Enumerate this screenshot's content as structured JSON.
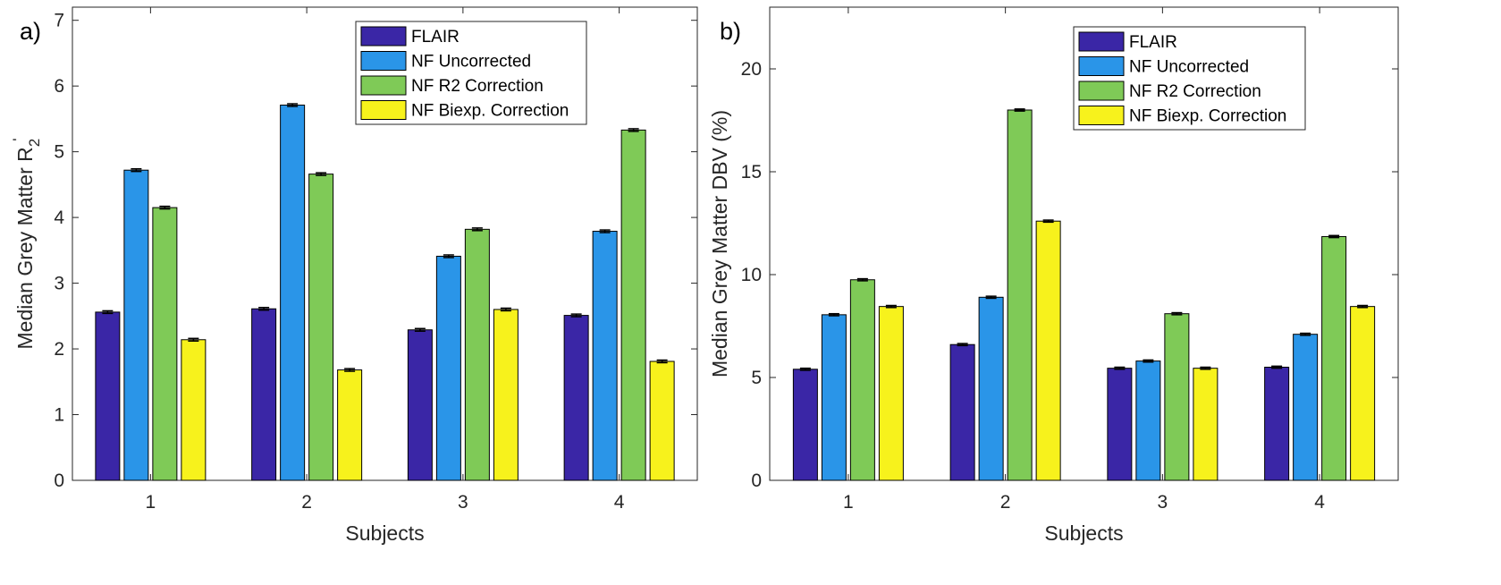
{
  "series_colors": [
    "#3a26a6",
    "#2a95e8",
    "#7fca57",
    "#f7f21c"
  ],
  "chart_data": [
    {
      "type": "bar",
      "panel_label": "a)",
      "categories": [
        "1",
        "2",
        "3",
        "4"
      ],
      "series": [
        {
          "name": "FLAIR",
          "values": [
            2.56,
            2.61,
            2.29,
            2.51
          ]
        },
        {
          "name": "NF Uncorrected",
          "values": [
            4.72,
            5.71,
            3.41,
            3.79
          ]
        },
        {
          "name": "NF R2 Correction",
          "values": [
            4.15,
            4.66,
            3.82,
            5.33
          ]
        },
        {
          "name": "NF Biexp. Correction",
          "values": [
            2.14,
            1.68,
            2.6,
            1.81
          ]
        }
      ],
      "error": [
        [
          0.02,
          0.02,
          0.02,
          0.02
        ],
        [
          0.02,
          0.02,
          0.02,
          0.02
        ],
        [
          0.02,
          0.02,
          0.02,
          0.02
        ],
        [
          0.02,
          0.02,
          0.02,
          0.02
        ]
      ],
      "xlabel": "Subjects",
      "ylabel": "Median Grey Matter R",
      "ylabel_sub": "2",
      "ylabel_sup": "'",
      "ylim": [
        0,
        7.2
      ],
      "yticks": [
        0,
        1,
        2,
        3,
        4,
        5,
        6,
        7
      ],
      "legend_position": "top-right"
    },
    {
      "type": "bar",
      "panel_label": "b)",
      "categories": [
        "1",
        "2",
        "3",
        "4"
      ],
      "series": [
        {
          "name": "FLAIR",
          "values": [
            5.4,
            6.6,
            5.45,
            5.5
          ]
        },
        {
          "name": "NF Uncorrected",
          "values": [
            8.05,
            8.9,
            5.8,
            7.1
          ]
        },
        {
          "name": "NF R2 Correction",
          "values": [
            9.75,
            18.0,
            8.1,
            11.85
          ]
        },
        {
          "name": "NF Biexp. Correction",
          "values": [
            8.45,
            12.6,
            5.45,
            8.45
          ]
        }
      ],
      "error": [
        [
          0.05,
          0.05,
          0.05,
          0.05
        ],
        [
          0.05,
          0.05,
          0.05,
          0.05
        ],
        [
          0.05,
          0.05,
          0.05,
          0.05
        ],
        [
          0.05,
          0.05,
          0.05,
          0.05
        ]
      ],
      "xlabel": "Subjects",
      "ylabel": "Median Grey Matter DBV (%)",
      "ylim": [
        0,
        23
      ],
      "yticks": [
        0,
        5,
        10,
        15,
        20
      ],
      "legend_position": "top-right"
    }
  ]
}
